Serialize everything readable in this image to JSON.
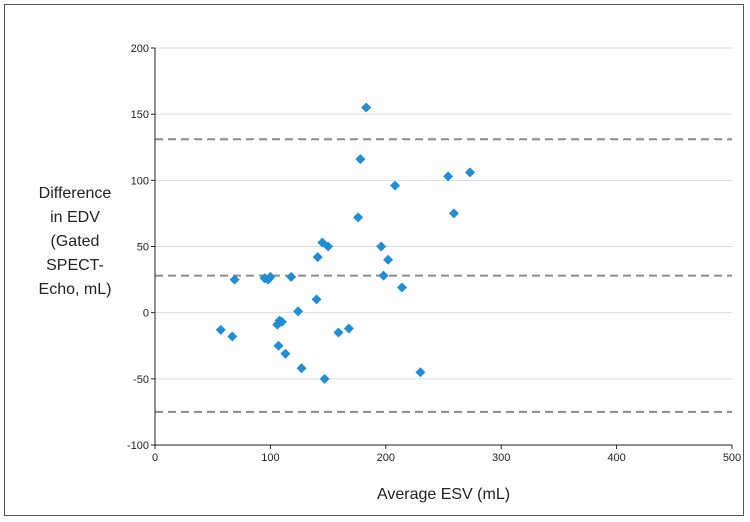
{
  "chart_data": {
    "type": "scatter",
    "xlabel": "Average ESV (mL)",
    "ylabel_lines": [
      "Difference",
      "in EDV",
      "(Gated",
      "SPECT-",
      "Echo, mL)"
    ],
    "xlim": [
      0,
      500
    ],
    "ylim": [
      -100,
      200
    ],
    "xticks": [
      "0",
      "100",
      "200",
      "300",
      "400",
      "500"
    ],
    "yticks": [
      "-100",
      "-50",
      "0",
      "50",
      "100",
      "150",
      "200"
    ],
    "grid": "horizontal",
    "reference_lines": [
      131,
      28,
      -75
    ],
    "colors": {
      "points": "#1e8fd5",
      "grid": "#d9d9d9",
      "reference": "#8c8c8c",
      "axis": "#222222"
    },
    "points": [
      {
        "x": 57,
        "y": -13
      },
      {
        "x": 67,
        "y": -18
      },
      {
        "x": 69,
        "y": 25
      },
      {
        "x": 95,
        "y": 26
      },
      {
        "x": 98,
        "y": 25
      },
      {
        "x": 100,
        "y": 27
      },
      {
        "x": 106,
        "y": -9
      },
      {
        "x": 107,
        "y": -25
      },
      {
        "x": 108,
        "y": -6
      },
      {
        "x": 110,
        "y": -7
      },
      {
        "x": 113,
        "y": -31
      },
      {
        "x": 118,
        "y": 27
      },
      {
        "x": 124,
        "y": 1
      },
      {
        "x": 127,
        "y": -42
      },
      {
        "x": 140,
        "y": 10
      },
      {
        "x": 141,
        "y": 42
      },
      {
        "x": 145,
        "y": 53
      },
      {
        "x": 147,
        "y": -50
      },
      {
        "x": 150,
        "y": 50
      },
      {
        "x": 159,
        "y": -15
      },
      {
        "x": 168,
        "y": -12
      },
      {
        "x": 176,
        "y": 72
      },
      {
        "x": 178,
        "y": 116
      },
      {
        "x": 183,
        "y": 155
      },
      {
        "x": 196,
        "y": 50
      },
      {
        "x": 198,
        "y": 28
      },
      {
        "x": 202,
        "y": 40
      },
      {
        "x": 208,
        "y": 96
      },
      {
        "x": 214,
        "y": 19
      },
      {
        "x": 230,
        "y": -45
      },
      {
        "x": 254,
        "y": 103
      },
      {
        "x": 259,
        "y": 75
      },
      {
        "x": 273,
        "y": 106
      }
    ]
  }
}
